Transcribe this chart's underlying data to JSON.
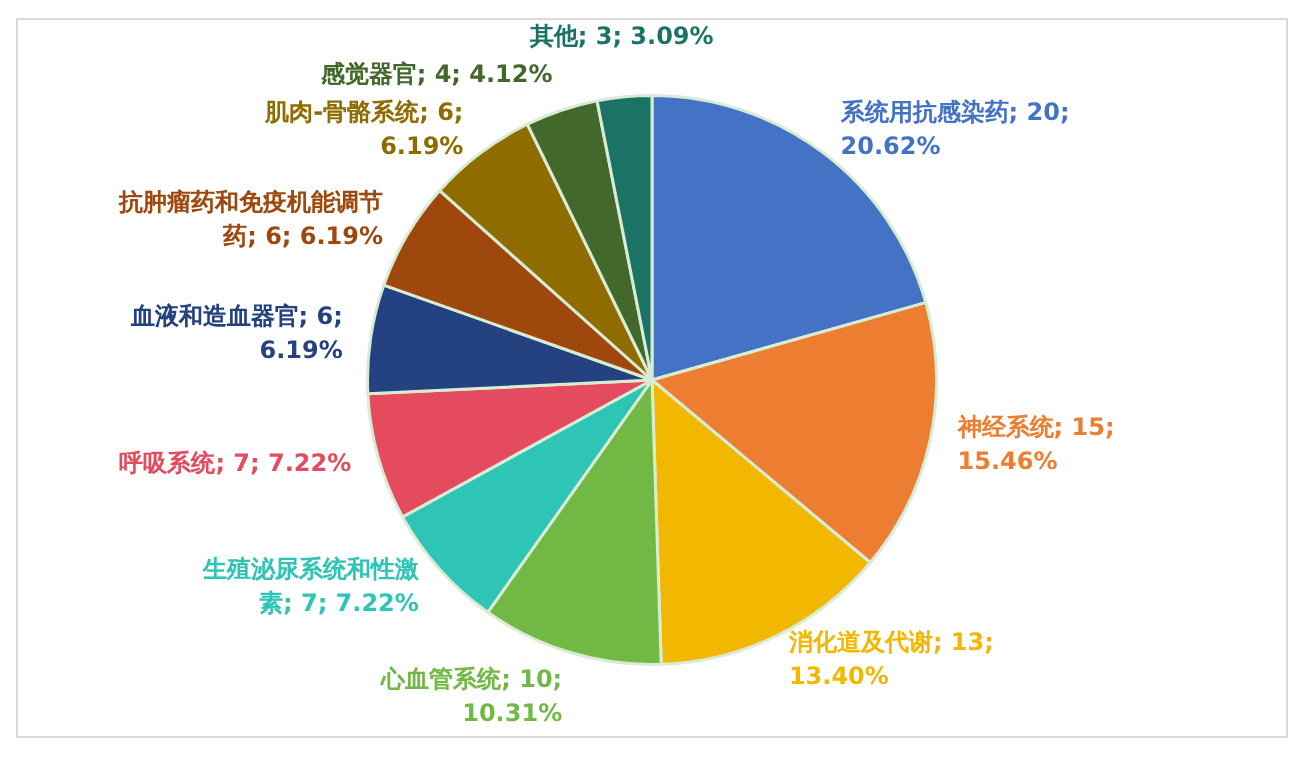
{
  "chart_data": {
    "type": "pie",
    "categories": [
      "系统用抗感染药",
      "神经系统",
      "消化道及代谢",
      "心血管系统",
      "生殖泌尿系统和性激素",
      "呼吸系统",
      "血液和造血器官",
      "抗肿瘤药和免疫机能调节药",
      "肌肉-骨骼系统",
      "感觉器官",
      "其他"
    ],
    "values": [
      20,
      15,
      13,
      10,
      7,
      7,
      6,
      6,
      6,
      4,
      3
    ],
    "value_labels": [
      "20; 20.62%",
      "15; 15.46%",
      "13; 13.40%",
      "10; 10.31%",
      "7; 7.22%",
      "7; 7.22%",
      "6; 6.19%",
      "6; 6.19%",
      "6; 6.19%",
      "4; 4.12%",
      "3; 3.09%"
    ],
    "colors": [
      "#4472c4",
      "#ed7d31",
      "#f2b800",
      "#72b844",
      "#2ec4b6",
      "#e44b5e",
      "#244180",
      "#9e480e",
      "#8f6c00",
      "#43682b",
      "#1b7366"
    ],
    "legend": false
  }
}
